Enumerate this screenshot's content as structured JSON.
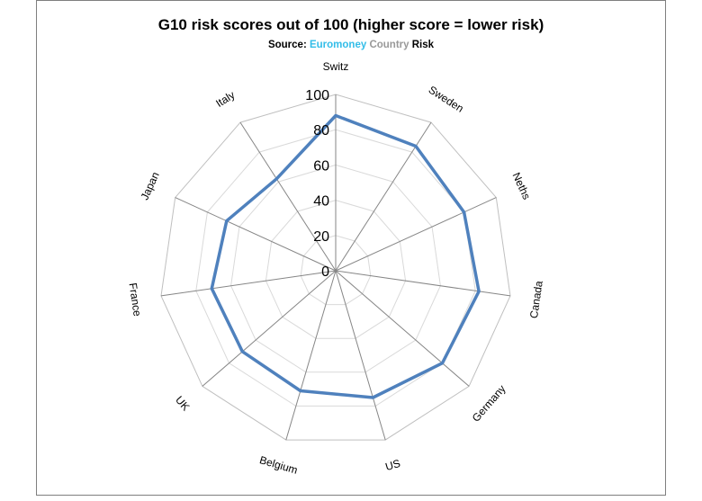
{
  "chart_data": {
    "type": "radar",
    "title": "G10 risk scores out of 100 (higher score = lower risk)",
    "subtitle": {
      "prefix": "Source: ",
      "euromoney": "Euromoney",
      "country": "Country",
      "risk": "Risk"
    },
    "categories": [
      "Switz",
      "Sweden",
      "Neths",
      "Canada",
      "Germany",
      "US",
      "Belgium",
      "UK",
      "France",
      "Japan",
      "Italy"
    ],
    "values": [
      88,
      84,
      80,
      82,
      80,
      75,
      71,
      70,
      71,
      68,
      62
    ],
    "rlim": [
      0,
      100
    ],
    "ticks": [
      0,
      20,
      40,
      60,
      80,
      100
    ],
    "tick_labels": [
      "0",
      "20",
      "40",
      "60",
      "80",
      "100"
    ],
    "series_color": "#4f81bd",
    "grid": true,
    "grid_color": "#d9d9d9",
    "spoke_color": "#868686"
  }
}
